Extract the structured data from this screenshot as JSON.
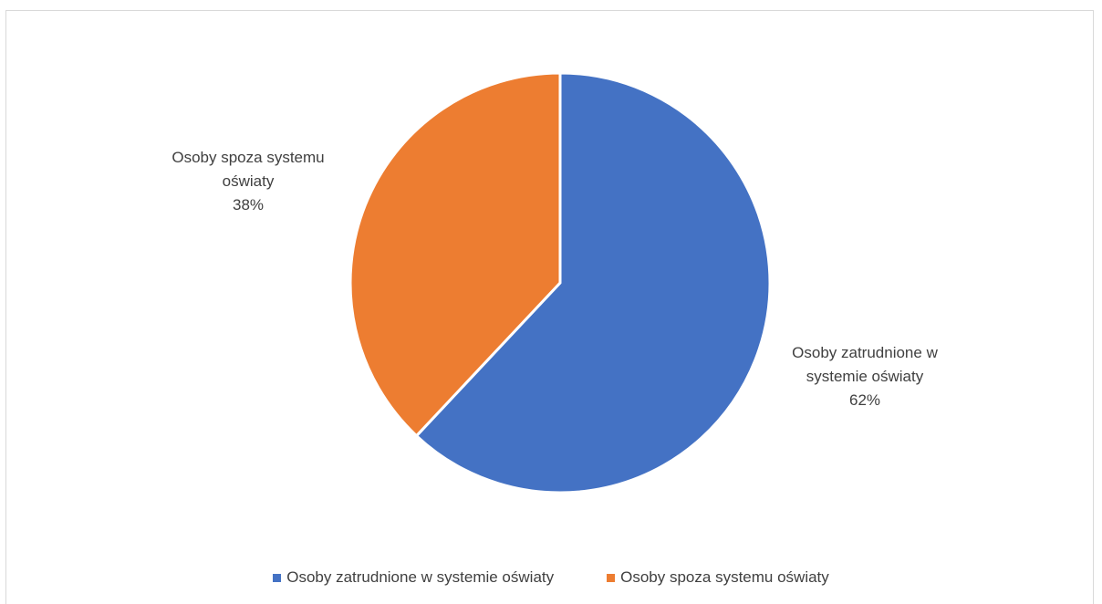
{
  "chart_data": {
    "type": "pie",
    "title": "",
    "categories": [
      "Osoby zatrudnione w systemie oświaty",
      "Osoby spoza systemu oświaty"
    ],
    "values": [
      62,
      38
    ],
    "unit": "%",
    "colors": [
      "#4472c4",
      "#ed7d31"
    ],
    "start_angle_deg": 0,
    "direction": "clockwise",
    "legend_position": "bottom",
    "data_labels": [
      {
        "line1": "Osoby zatrudnione w",
        "line2": "systemie oświaty",
        "value": "62%"
      },
      {
        "line1": "Osoby spoza systemu",
        "line2": "oświaty",
        "value": "38%"
      }
    ],
    "legend": [
      {
        "label": "Osoby zatrudnione w systemie oświaty",
        "color": "#4472c4"
      },
      {
        "label": "Osoby spoza systemu oświaty",
        "color": "#ed7d31"
      }
    ]
  }
}
